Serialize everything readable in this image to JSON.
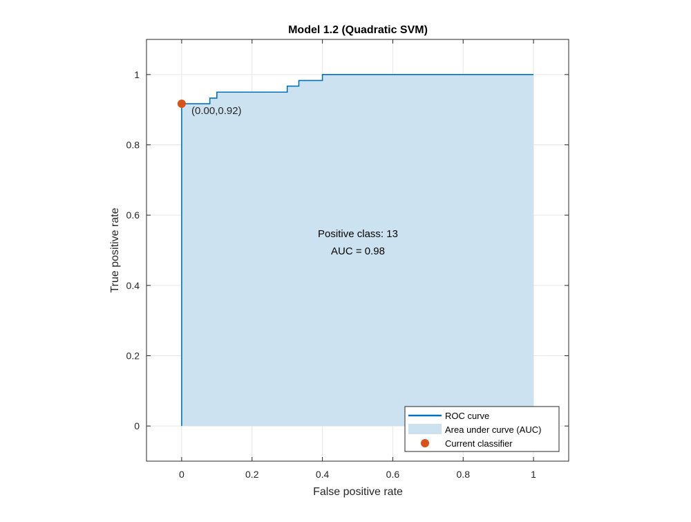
{
  "chart_data": {
    "type": "line",
    "title": "Model 1.2 (Quadratic SVM)",
    "xlabel": "False positive rate",
    "ylabel": "True positive rate",
    "xlim": [
      -0.1,
      1.1
    ],
    "ylim": [
      -0.1,
      1.1
    ],
    "x_ticks": [
      0,
      0.2,
      0.4,
      0.6,
      0.8,
      1
    ],
    "x_tick_labels": [
      "0",
      "0.2",
      "0.4",
      "0.6",
      "0.8",
      "1"
    ],
    "y_ticks": [
      0,
      0.2,
      0.4,
      0.6,
      0.8,
      1
    ],
    "y_tick_labels": [
      "0",
      "0.2",
      "0.4",
      "0.6",
      "0.8",
      "1"
    ],
    "grid": true,
    "legend_position": "bottom-right",
    "colors": {
      "roc": "#0072BD",
      "auc_fill": "#CCE2F1",
      "current": "#D95319"
    },
    "series": [
      {
        "name": "ROC curve",
        "x": [
          0,
          0,
          0.08,
          0.08,
          0.1,
          0.1,
          0.3,
          0.3,
          0.333,
          0.333,
          0.4,
          0.4,
          1.0
        ],
        "y": [
          0,
          0.917,
          0.917,
          0.933,
          0.933,
          0.95,
          0.95,
          0.967,
          0.967,
          0.983,
          0.983,
          1.0,
          1.0
        ]
      },
      {
        "name": "Area under curve (AUC)",
        "value": 0.98
      },
      {
        "name": "Current classifier",
        "x": [
          0.0
        ],
        "y": [
          0.917
        ]
      }
    ],
    "annotations": {
      "point_label": "(0.00,0.92)",
      "positive_class": "Positive class: 13",
      "auc": "AUC = 0.98"
    },
    "legend": [
      "ROC curve",
      "Area under curve (AUC)",
      "Current classifier"
    ]
  }
}
